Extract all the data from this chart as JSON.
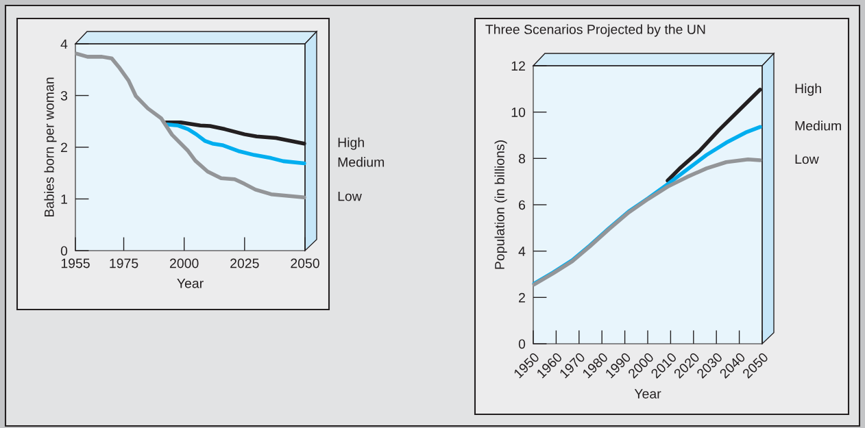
{
  "chart_data": [
    {
      "type": "line",
      "xlabel": "Year",
      "ylabel": "Babies born per woman",
      "xlim": [
        1955,
        2050
      ],
      "xticks": [
        1955,
        1975,
        2000,
        2025,
        2050
      ],
      "ylim": [
        0,
        4
      ],
      "yticks": [
        0,
        1,
        2,
        3,
        4
      ],
      "grid": false,
      "legend": false,
      "series": [
        {
          "name": "High",
          "color": "#231f20",
          "x": [
            1992.5,
            1998.6,
            2006.7,
            2010.7,
            2016.8,
            2025,
            2030,
            2038,
            2049.7
          ],
          "values": [
            2.48,
            2.48,
            2.42,
            2.41,
            2.35,
            2.25,
            2.21,
            2.18,
            2.07
          ]
        },
        {
          "name": "Medium",
          "color": "#00aeef",
          "x": [
            1993,
            1997.5,
            2001.6,
            2005,
            2008.7,
            2011.7,
            2015.8,
            2022.9,
            2029,
            2036,
            2041,
            2049.7
          ],
          "values": [
            2.44,
            2.42,
            2.35,
            2.25,
            2.12,
            2.07,
            2.04,
            1.92,
            1.85,
            1.79,
            1.73,
            1.69
          ]
        },
        {
          "name": "Low",
          "color": "#939598",
          "x": [
            1955.5,
            1960,
            1966,
            1970,
            1973,
            1977,
            1980,
            1985,
            1990.5,
            1995,
            2001.6,
            2004.6,
            2009.7,
            2015.3,
            2020.9,
            2025,
            2029.5,
            2036,
            2049.7
          ],
          "values": [
            3.81,
            3.75,
            3.75,
            3.72,
            3.55,
            3.29,
            2.99,
            2.75,
            2.56,
            2.24,
            1.93,
            1.74,
            1.53,
            1.4,
            1.38,
            1.29,
            1.18,
            1.09,
            1.03
          ]
        }
      ]
    },
    {
      "type": "line",
      "title": "Three Scenarios Projected by the UN",
      "xlabel": "Year",
      "ylabel": "Population (in billions)",
      "xlim": [
        1950,
        2050
      ],
      "xticks": [
        1950,
        1960,
        1970,
        1980,
        1990,
        2000,
        2010,
        2020,
        2030,
        2040,
        2050
      ],
      "ylim": [
        0,
        12
      ],
      "yticks": [
        0,
        2,
        4,
        6,
        8,
        10,
        12
      ],
      "grid": false,
      "legend": false,
      "series": [
        {
          "name": "High",
          "color": "#231f20",
          "x": [
            2008.7,
            2014,
            2022.5,
            2031,
            2039.6,
            2049.1
          ],
          "values": [
            7.04,
            7.57,
            8.31,
            9.21,
            10.05,
            10.97
          ]
        },
        {
          "name": "Medium",
          "color": "#00aeef",
          "x": [
            1950.4,
            1958.7,
            1967,
            1974.7,
            1983,
            1991.7,
            2000.2,
            2008.7,
            2017.2,
            2025.7,
            2034.3,
            2042.8,
            2049.1
          ],
          "values": [
            2.6,
            3.08,
            3.6,
            4.24,
            4.98,
            5.71,
            6.28,
            6.89,
            7.52,
            8.15,
            8.68,
            9.12,
            9.36
          ]
        },
        {
          "name": "Low",
          "color": "#939598",
          "x": [
            1950.4,
            1958.7,
            1967,
            1974.7,
            1983,
            1991.7,
            2000.2,
            2008.7,
            2017.2,
            2025.7,
            2034.3,
            2043.8,
            2049.1
          ],
          "values": [
            2.56,
            3.04,
            3.56,
            4.2,
            4.94,
            5.67,
            6.25,
            6.78,
            7.2,
            7.57,
            7.84,
            7.96,
            7.92
          ]
        }
      ]
    }
  ]
}
